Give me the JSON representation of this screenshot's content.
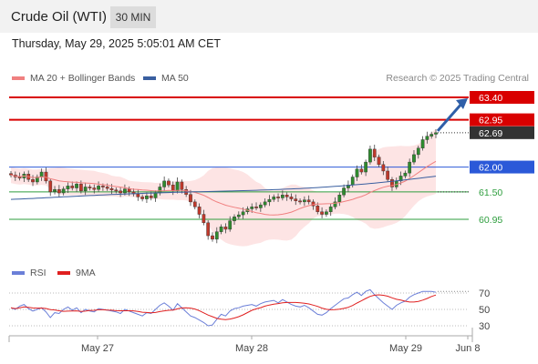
{
  "header": {
    "title": "Crude Oil (WTI)",
    "timeframe": "30 MIN",
    "datetime": "Thursday, May 29, 2025 5:05:01 AM CET"
  },
  "legend": {
    "ma20_label": "MA 20 + Bollinger Bands",
    "ma50_label": "MA 50",
    "rsi_label": "RSI",
    "rsi_ma_label": "9MA",
    "credit": "Research © 2025 Trading Central"
  },
  "colors": {
    "ma20": "#f08080",
    "ma50": "#3a5fa0",
    "resistance": "#d90000",
    "pivot": "#2b59d8",
    "support": "#2e9e3e",
    "arrow": "#2f5fa8",
    "bollinger_fill": "#fde4e4",
    "candle_up": "#2e8b2e",
    "candle_down": "#c0392b",
    "current_price_bg": "#333333",
    "rsi_line": "#6b7fd8",
    "rsi_ma_line": "#e02020"
  },
  "chart_data": {
    "type": "candlestick",
    "instrument": "Crude Oil (WTI)",
    "timeframe": "30 MIN",
    "x_ticks": [
      "May 27",
      "May 28",
      "May 29",
      "Jun 8"
    ],
    "ylim": [
      60.5,
      63.6
    ],
    "current_price": 62.69,
    "levels": [
      {
        "label": "63.40",
        "value": 63.4,
        "type": "resistance"
      },
      {
        "label": "62.95",
        "value": 62.95,
        "type": "resistance"
      },
      {
        "label": "62.00",
        "value": 62.0,
        "type": "pivot"
      },
      {
        "label": "61.50",
        "value": 61.5,
        "type": "support"
      },
      {
        "label": "60.95",
        "value": 60.95,
        "type": "support"
      }
    ],
    "close_series": [
      61.84,
      61.8,
      61.78,
      61.86,
      61.75,
      61.7,
      61.8,
      61.9,
      61.72,
      61.5,
      61.55,
      61.48,
      61.56,
      61.62,
      61.58,
      61.66,
      61.52,
      61.6,
      61.58,
      61.55,
      61.62,
      61.6,
      61.57,
      61.54,
      61.52,
      61.48,
      61.56,
      61.5,
      61.46,
      61.4,
      61.36,
      61.42,
      61.38,
      61.48,
      61.6,
      61.72,
      61.64,
      61.52,
      61.7,
      61.55,
      61.45,
      61.3,
      61.2,
      61.05,
      60.88,
      60.62,
      60.55,
      60.7,
      60.8,
      60.75,
      60.92,
      61.0,
      61.04,
      61.1,
      61.16,
      61.2,
      61.18,
      61.24,
      61.3,
      61.35,
      61.4,
      61.38,
      61.44,
      61.4,
      61.36,
      61.32,
      61.3,
      61.34,
      61.3,
      61.22,
      61.1,
      61.05,
      61.1,
      61.2,
      61.3,
      61.44,
      61.58,
      61.64,
      61.8,
      61.96,
      61.9,
      62.1,
      62.36,
      62.2,
      62.05,
      61.92,
      61.75,
      61.6,
      61.72,
      61.82,
      61.88,
      62.1,
      62.25,
      62.38,
      62.55,
      62.62,
      62.66,
      62.69
    ],
    "ma50": {
      "start": 61.35,
      "end": 61.83
    },
    "rsi": {
      "ylim": [
        20,
        80
      ],
      "levels": [
        70,
        50,
        30
      ],
      "rsi_series": [
        52,
        50,
        54,
        56,
        51,
        48,
        50,
        52,
        47,
        40,
        46,
        45,
        50,
        53,
        49,
        52,
        46,
        50,
        48,
        47,
        51,
        50,
        49,
        48,
        47,
        45,
        50,
        48,
        46,
        44,
        42,
        46,
        45,
        50,
        55,
        58,
        54,
        49,
        57,
        52,
        47,
        42,
        40,
        37,
        34,
        30,
        31,
        38,
        44,
        42,
        48,
        51,
        52,
        54,
        55,
        56,
        54,
        57,
        59,
        60,
        61,
        58,
        62,
        59,
        56,
        54,
        53,
        55,
        52,
        48,
        44,
        43,
        46,
        51,
        55,
        59,
        63,
        64,
        68,
        71,
        67,
        72,
        74,
        68,
        63,
        58,
        54,
        50,
        55,
        58,
        60,
        65,
        68,
        70,
        72,
        72,
        72,
        71
      ],
      "rsi_ma_start": 49,
      "rsi_ma_end": 65
    }
  }
}
